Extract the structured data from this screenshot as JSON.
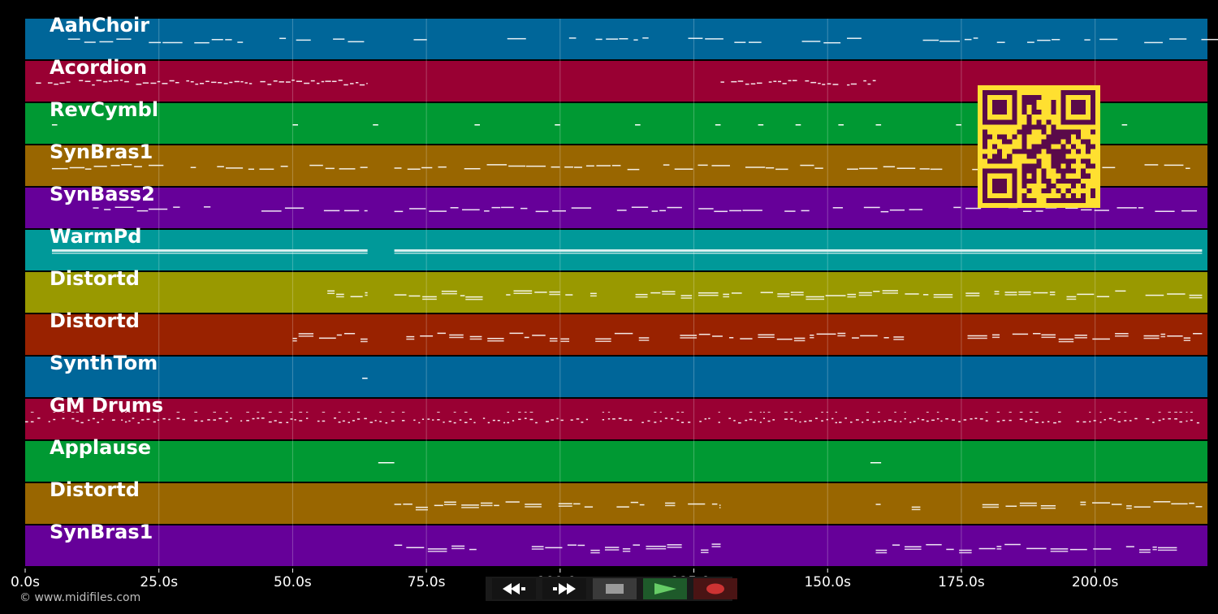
{
  "tracks": [
    {
      "name": "AahChoir",
      "color": "#006699"
    },
    {
      "name": "Acordion",
      "color": "#990033"
    },
    {
      "name": "RevCymbl",
      "color": "#009933"
    },
    {
      "name": "SynBras1",
      "color": "#996600"
    },
    {
      "name": "SynBass2",
      "color": "#660099"
    },
    {
      "name": "WarmPd",
      "color": "#009999"
    },
    {
      "name": "Distortd",
      "color": "#999900"
    },
    {
      "name": "Distortd",
      "color": "#992200"
    },
    {
      "name": "SynthTom",
      "color": "#006699"
    },
    {
      "name": "GM Drums",
      "color": "#990033"
    },
    {
      "name": "Applause",
      "color": "#009933"
    },
    {
      "name": "Distortd",
      "color": "#996600"
    },
    {
      "name": "SynBras1",
      "color": "#660099"
    }
  ],
  "timeline": {
    "ticks": [
      "0.0s",
      "25.0s",
      "50.0s",
      "75.0s",
      "100.0s",
      "125.0s",
      "150.0s",
      "175.0s",
      "200.0s"
    ],
    "tick_values": [
      0,
      25,
      50,
      75,
      100,
      125,
      150,
      175,
      200
    ],
    "range": [
      0,
      221
    ]
  },
  "transport": {
    "rewind_icon": "rewind-icon",
    "fast_forward_icon": "fast-forward-icon",
    "stop_icon": "stop-icon",
    "play_icon": "play-icon",
    "record_icon": "record-icon"
  },
  "footer": {
    "copyright": "© www.midifiles.com"
  }
}
